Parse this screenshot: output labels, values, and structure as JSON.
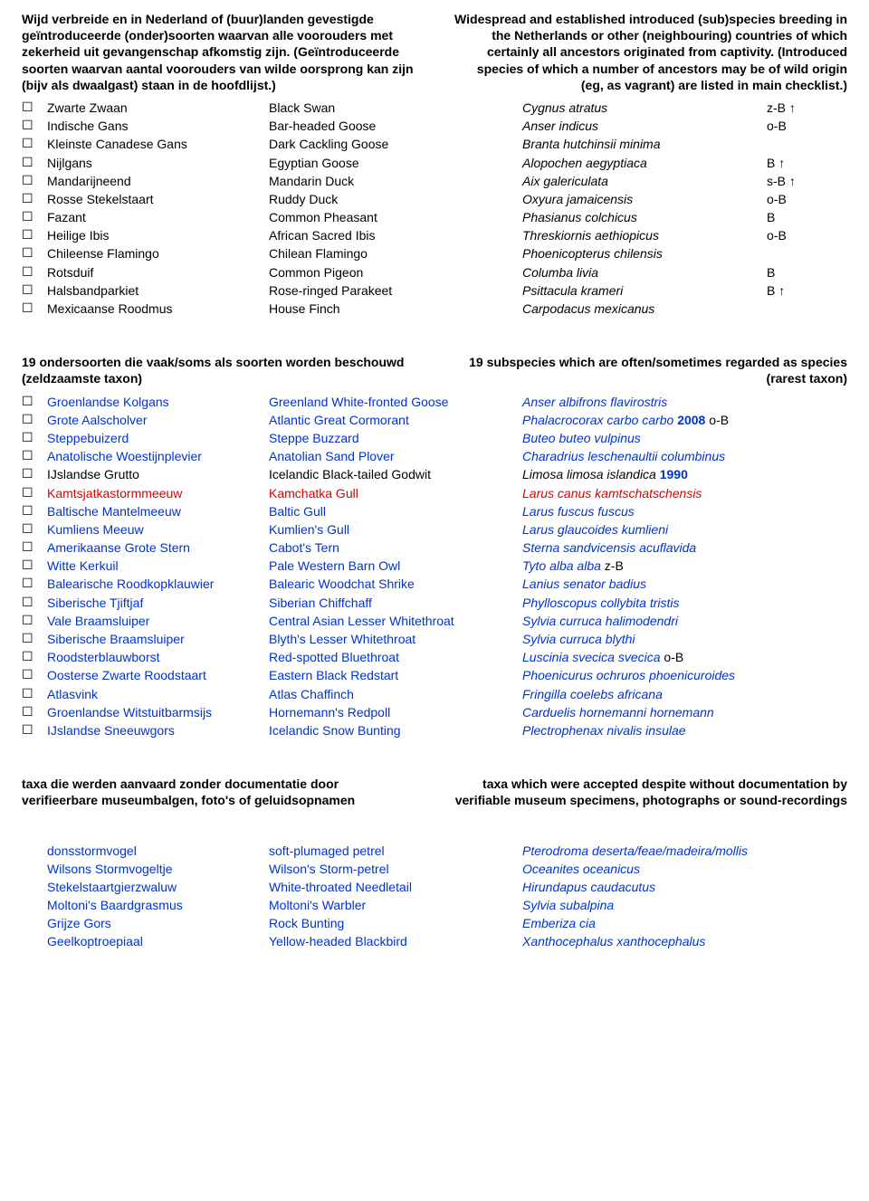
{
  "colors": {
    "black": "#000000",
    "blue": "#0033cc",
    "red": "#d90000",
    "background": "#ffffff"
  },
  "section1": {
    "heading_nl": "Wijd verbreide en in Nederland of (buur)landen gevestigde geïntroduceerde (onder)soorten waarvan alle voorouders met zekerheid uit gevangenschap afkomstig zijn. (Geïntroduceerde soorten waarvan aantal voorouders van wilde oorsprong kan zijn (bijv als dwaalgast) staan in de hoofdlijst.)",
    "heading_en": "Widespread and established introduced (sub)species breeding in the Netherlands or other (neighbouring) countries of which certainly all ancestors originated from captivity. (Introduced species of which a number of ancestors may be of wild origin (eg, as vagrant) are listed in main checklist.)",
    "rows": [
      {
        "nl": "Zwarte Zwaan",
        "en": "Black Swan",
        "sci": "Cygnus atratus",
        "status": "z-B ↑",
        "color": "black"
      },
      {
        "nl": "Indische Gans",
        "en": "Bar-headed Goose",
        "sci": "Anser indicus",
        "status": "o-B",
        "color": "black"
      },
      {
        "nl": "Kleinste Canadese Gans",
        "en": "Dark Cackling Goose",
        "sci": "Branta hutchinsii minima",
        "status": "",
        "color": "black"
      },
      {
        "nl": "Nijlgans",
        "en": "Egyptian Goose",
        "sci": "Alopochen aegyptiaca",
        "status": "B ↑",
        "color": "black"
      },
      {
        "nl": "Mandarijneend",
        "en": "Mandarin Duck",
        "sci": "Aix galericulata",
        "status": "s-B ↑",
        "color": "black"
      },
      {
        "nl": "Rosse Stekelstaart",
        "en": "Ruddy Duck",
        "sci": "Oxyura jamaicensis",
        "status": "o-B",
        "color": "black"
      },
      {
        "nl": "Fazant",
        "en": "Common Pheasant",
        "sci": "Phasianus colchicus",
        "status": "B",
        "color": "black"
      },
      {
        "nl": "Heilige Ibis",
        "en": "African Sacred Ibis",
        "sci": "Threskiornis aethiopicus",
        "status": "o-B",
        "color": "black"
      },
      {
        "nl": "Chileense Flamingo",
        "en": "Chilean Flamingo",
        "sci": "Phoenicopterus chilensis",
        "status": "",
        "color": "black"
      },
      {
        "nl": "Rotsduif",
        "en": "Common Pigeon",
        "sci": "Columba livia",
        "status": "B",
        "color": "black"
      },
      {
        "nl": "Halsbandparkiet",
        "en": "Rose-ringed Parakeet",
        "sci": "Psittacula krameri",
        "status": "B ↑",
        "color": "black"
      },
      {
        "nl": "Mexicaanse Roodmus",
        "en": "House Finch",
        "sci": "Carpodacus mexicanus",
        "status": "",
        "color": "black"
      }
    ]
  },
  "section2": {
    "heading_nl": "19 ondersoorten die vaak/soms als soorten worden beschouwd (zeldzaamste taxon)",
    "heading_en": "19 subspecies which are often/sometimes regarded as species (rarest taxon)",
    "rows": [
      {
        "nl": "Groenlandse Kolgans",
        "en": "Greenland White-fronted Goose",
        "sci": "Anser albifrons flavirostris",
        "status": "",
        "color": "blue"
      },
      {
        "nl": "Grote Aalscholver",
        "en": "Atlantic Great Cormorant",
        "sci": "Phalacrocorax carbo carbo",
        "year": "2008",
        "status": "o-B",
        "color": "blue",
        "status_color": "black"
      },
      {
        "nl": "Steppebuizerd",
        "en": "Steppe Buzzard",
        "sci": "Buteo buteo vulpinus",
        "status": "",
        "color": "blue"
      },
      {
        "nl": "Anatolische Woestijnplevier",
        "en": "Anatolian Sand Plover",
        "sci": "Charadrius leschenaultii columbinus",
        "status": "",
        "color": "blue"
      },
      {
        "nl": "IJslandse Grutto",
        "en": "Icelandic Black-tailed Godwit",
        "sci": "Limosa limosa islandica",
        "year": "1990",
        "status": "",
        "color": "blue",
        "nl_color": "black",
        "en_color": "black",
        "sci_color": "black"
      },
      {
        "nl": "Kamtsjatkastormmeeuw",
        "en": "Kamchatka Gull",
        "sci": "Larus canus kamtschatschensis",
        "status": "",
        "color": "red"
      },
      {
        "nl": "Baltische Mantelmeeuw",
        "en": "Baltic Gull",
        "sci": "Larus fuscus fuscus",
        "status": "",
        "color": "blue"
      },
      {
        "nl": "Kumliens Meeuw",
        "en": "Kumlien's Gull",
        "sci": "Larus glaucoides kumlieni",
        "status": "",
        "color": "blue"
      },
      {
        "nl": "Amerikaanse Grote Stern",
        "en": "Cabot's Tern",
        "sci": "Sterna sandvicensis acuflavida",
        "status": "",
        "color": "blue"
      },
      {
        "nl": "Witte Kerkuil",
        "en": "Pale Western Barn Owl",
        "sci": "Tyto alba alba",
        "status": "z-B",
        "color": "blue",
        "status_color": "black"
      },
      {
        "nl": "Balearische Roodkopklauwier",
        "en": "Balearic Woodchat Shrike",
        "sci": "Lanius senator badius",
        "status": "",
        "color": "blue"
      },
      {
        "nl": "Siberische Tjiftjaf",
        "en": "Siberian Chiffchaff",
        "sci": "Phylloscopus collybita tristis",
        "status": "",
        "color": "blue"
      },
      {
        "nl": "Vale Braamsluiper",
        "en": "Central Asian Lesser Whitethroat",
        "sci": "Sylvia curruca halimodendri",
        "status": "",
        "color": "blue"
      },
      {
        "nl": "Siberische Braamsluiper",
        "en": "Blyth's Lesser Whitethroat",
        "sci": "Sylvia curruca blythi",
        "status": "",
        "color": "blue"
      },
      {
        "nl": "Roodsterblauwborst",
        "en": "Red-spotted Bluethroat",
        "sci": "Luscinia svecica svecica",
        "status": "o-B",
        "color": "blue",
        "status_color": "black"
      },
      {
        "nl": "Oosterse Zwarte Roodstaart",
        "en": "Eastern Black Redstart",
        "sci": "Phoenicurus ochruros phoenicuroides",
        "status": "",
        "color": "blue"
      },
      {
        "nl": "Atlasvink",
        "en": "Atlas Chaffinch",
        "sci": "Fringilla coelebs africana",
        "status": "",
        "color": "blue"
      },
      {
        "nl": "Groenlandse Witstuitbarmsijs",
        "en": "Hornemann's Redpoll",
        "sci": "Carduelis hornemanni hornemann",
        "status": "",
        "color": "blue"
      },
      {
        "nl": "IJslandse Sneeuwgors",
        "en": "Icelandic Snow Bunting",
        "sci": "Plectrophenax nivalis insulae",
        "status": "",
        "color": "blue"
      }
    ]
  },
  "section3": {
    "heading_nl": "taxa die werden aanvaard zonder documentatie door verifieerbare museumbalgen, foto's of geluidsopnamen",
    "heading_en": "taxa which were accepted despite without documentation by verifiable museum specimens, photographs or sound-recordings",
    "rows": [
      {
        "nl": "donsstormvogel",
        "en": "soft-plumaged petrel",
        "sci": "Pterodroma deserta/feae/madeira/mollis",
        "status": "",
        "color": "blue"
      },
      {
        "nl": "Wilsons Stormvogeltje",
        "en": "Wilson's Storm-petrel",
        "sci": "Oceanites oceanicus",
        "status": "",
        "color": "blue"
      },
      {
        "nl": "Stekelstaartgierzwaluw",
        "en": "White-throated Needletail",
        "sci": "Hirundapus caudacutus",
        "status": "",
        "color": "blue"
      },
      {
        "nl": "Moltoni's Baardgrasmus",
        "en": "Moltoni's Warbler",
        "sci": "Sylvia subalpina",
        "status": "",
        "color": "blue"
      },
      {
        "nl": "Grijze Gors",
        "en": "Rock Bunting",
        "sci": "Emberiza cia",
        "status": "",
        "color": "blue"
      },
      {
        "nl": "Geelkoptroepiaal",
        "en": "Yellow-headed Blackbird",
        "sci": "Xanthocephalus xanthocephalus",
        "status": "",
        "color": "blue"
      }
    ]
  }
}
